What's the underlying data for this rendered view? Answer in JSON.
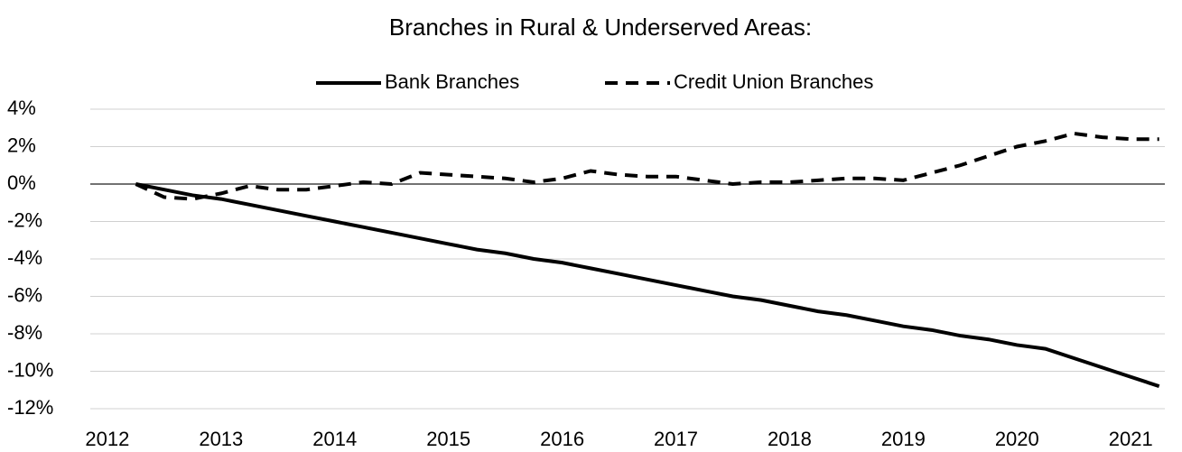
{
  "chart_data": {
    "type": "line",
    "title": "Branches in Rural & Underserved Areas:",
    "x": [
      2012.25,
      2012.5,
      2012.75,
      2013,
      2013.25,
      2013.5,
      2013.75,
      2014,
      2014.25,
      2014.5,
      2014.75,
      2015,
      2015.25,
      2015.5,
      2015.75,
      2016,
      2016.25,
      2016.5,
      2016.75,
      2017,
      2017.25,
      2017.5,
      2017.75,
      2018,
      2018.25,
      2018.5,
      2018.75,
      2019,
      2019.25,
      2019.5,
      2019.75,
      2020,
      2020.25,
      2020.5,
      2020.75,
      2021,
      2021.25
    ],
    "series": [
      {
        "name": "Bank Branches",
        "color": "#000000",
        "dash": "solid",
        "values": [
          0,
          -0.3,
          -0.6,
          -0.8,
          -1.1,
          -1.4,
          -1.7,
          -2.0,
          -2.3,
          -2.6,
          -2.9,
          -3.2,
          -3.5,
          -3.7,
          -4.0,
          -4.2,
          -4.5,
          -4.8,
          -5.1,
          -5.4,
          -5.7,
          -6.0,
          -6.2,
          -6.5,
          -6.8,
          -7.0,
          -7.3,
          -7.6,
          -7.8,
          -8.1,
          -8.3,
          -8.6,
          -8.8,
          -9.3,
          -9.8,
          -10.3,
          -10.8
        ]
      },
      {
        "name": "Credit Union Branches",
        "color": "#000000",
        "dash": "dashed",
        "values": [
          0,
          -0.7,
          -0.8,
          -0.5,
          -0.1,
          -0.3,
          -0.3,
          -0.1,
          0.1,
          0.0,
          0.6,
          0.5,
          0.4,
          0.3,
          0.1,
          0.3,
          0.7,
          0.5,
          0.4,
          0.4,
          0.2,
          0.0,
          0.1,
          0.1,
          0.2,
          0.3,
          0.3,
          0.2,
          0.6,
          1.0,
          1.5,
          2.0,
          2.3,
          2.7,
          2.5,
          2.4,
          2.4
        ]
      }
    ],
    "xlim": [
      2011.85,
      2021.3
    ],
    "xticks": [
      2012,
      2013,
      2014,
      2015,
      2016,
      2017,
      2018,
      2019,
      2020,
      2021
    ],
    "ylim": [
      -12,
      4
    ],
    "yticks": [
      {
        "value": 4,
        "label": "4%"
      },
      {
        "value": 2,
        "label": "2%"
      },
      {
        "value": 0,
        "label": "0%"
      },
      {
        "value": -2,
        "label": "-2%"
      },
      {
        "value": -4,
        "label": "-4%"
      },
      {
        "value": -6,
        "label": "-6%"
      },
      {
        "value": -8,
        "label": "-8%"
      },
      {
        "value": -10,
        "label": "-10%"
      },
      {
        "value": -12,
        "label": "-12%"
      }
    ],
    "grid": true,
    "legend": "top"
  }
}
